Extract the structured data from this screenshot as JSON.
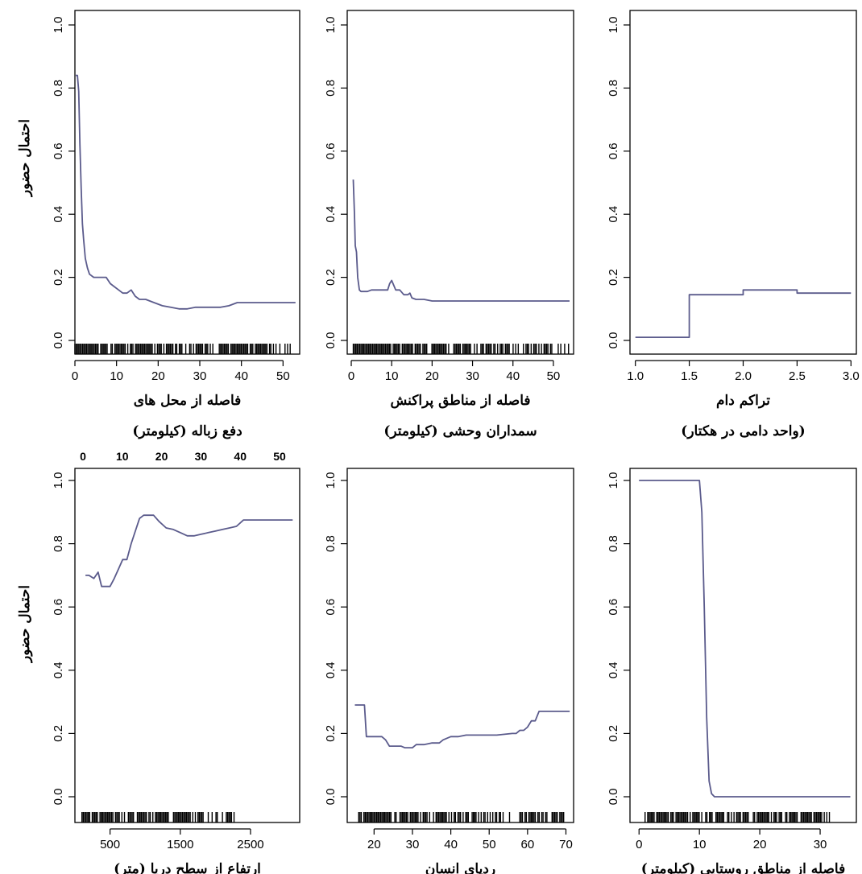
{
  "figure": {
    "y_axis_label": "احتمال حضور",
    "line_color": "#5b5b8c"
  },
  "chart_data": [
    {
      "type": "line",
      "panel": "top-left",
      "xlabel": [
        "فاصله از محل های",
        "دفع زباله (کیلومتر)"
      ],
      "xlim": [
        0,
        54
      ],
      "x_ticks": [
        "0",
        "10",
        "20",
        "30",
        "40",
        "50"
      ],
      "x_tick_values": [
        0,
        10,
        20,
        30,
        40,
        50
      ],
      "ylim": [
        0,
        1
      ],
      "y_ticks": [
        "0.0",
        "0.2",
        "0.4",
        "0.6",
        "0.8",
        "1.0"
      ],
      "y_label_shown": true,
      "series": [
        {
          "x": [
            0.2,
            0.6,
            0.9,
            1.2,
            1.5,
            1.8,
            2.1,
            2.5,
            3.0,
            3.5,
            4.5,
            5.5,
            6.5,
            7.5,
            8.5,
            9.5,
            10.5,
            11.5,
            12.5,
            13.5,
            14.5,
            15.5,
            17,
            19,
            21,
            23,
            25,
            27,
            29,
            31,
            35,
            37,
            39,
            45,
            50,
            53
          ],
          "y": [
            0.84,
            0.84,
            0.79,
            0.62,
            0.48,
            0.37,
            0.32,
            0.26,
            0.23,
            0.21,
            0.2,
            0.2,
            0.2,
            0.2,
            0.18,
            0.17,
            0.16,
            0.15,
            0.15,
            0.16,
            0.14,
            0.13,
            0.13,
            0.12,
            0.11,
            0.105,
            0.1,
            0.1,
            0.105,
            0.105,
            0.105,
            0.11,
            0.12,
            0.12,
            0.12,
            0.12
          ]
        }
      ],
      "rug": {
        "from": 0,
        "to": 52
      }
    },
    {
      "type": "line",
      "panel": "top-middle",
      "xlabel": [
        "فاصله از مناطق پراکنش",
        "سمداران وحشی (کیلومتر)"
      ],
      "xlim": [
        -1,
        55
      ],
      "x_ticks": [
        "0",
        "10",
        "20",
        "30",
        "40",
        "50"
      ],
      "x_tick_values": [
        0,
        10,
        20,
        30,
        40,
        50
      ],
      "ylim": [
        0,
        1
      ],
      "y_ticks": [
        "0.0",
        "0.2",
        "0.4",
        "0.6",
        "0.8",
        "1.0"
      ],
      "y_label_shown": false,
      "series": [
        {
          "x": [
            0.5,
            0.8,
            1.0,
            1.3,
            1.6,
            2.0,
            2.4,
            3.0,
            4.0,
            5.0,
            6.0,
            7.0,
            8.0,
            9.0,
            9.5,
            10.0,
            10.5,
            11.0,
            12.0,
            13.0,
            14.0,
            14.5,
            15.0,
            16,
            18,
            20,
            30,
            40,
            50,
            54
          ],
          "y": [
            0.51,
            0.4,
            0.3,
            0.28,
            0.2,
            0.16,
            0.155,
            0.155,
            0.155,
            0.16,
            0.16,
            0.16,
            0.16,
            0.16,
            0.18,
            0.19,
            0.175,
            0.16,
            0.16,
            0.145,
            0.145,
            0.15,
            0.135,
            0.13,
            0.13,
            0.125,
            0.125,
            0.125,
            0.125,
            0.125
          ]
        }
      ],
      "rug": {
        "from": 0.5,
        "to": 54
      }
    },
    {
      "type": "line",
      "panel": "top-right",
      "xlabel": [
        "تراکم دام",
        "(واحد دامی در هکتار)"
      ],
      "xlim": [
        0.95,
        3.05
      ],
      "x_ticks": [
        "1.0",
        "1.5",
        "2.0",
        "2.5",
        "3.0"
      ],
      "x_tick_values": [
        1.0,
        1.5,
        2.0,
        2.5,
        3.0
      ],
      "ylim": [
        0,
        1
      ],
      "y_ticks": [
        "0.0",
        "0.2",
        "0.4",
        "0.6",
        "0.8",
        "1.0"
      ],
      "y_label_shown": false,
      "series": [
        {
          "x": [
            1.0,
            1.5,
            1.5,
            2.0,
            2.0,
            2.5,
            2.5,
            3.0
          ],
          "y": [
            0.01,
            0.01,
            0.145,
            0.145,
            0.16,
            0.16,
            0.15,
            0.15
          ]
        }
      ],
      "rug": null
    },
    {
      "type": "line",
      "panel": "bottom-left",
      "xlabel": [
        "ارتفاع از سطح دریا (متر)"
      ],
      "xlim": [
        0,
        3200
      ],
      "x_ticks": [
        "500",
        "1500",
        "2500"
      ],
      "x_tick_values": [
        500,
        1500,
        2500
      ],
      "top_axis_ticks": [
        "0",
        "10",
        "20",
        "30",
        "40",
        "50"
      ],
      "ylim": [
        0,
        1
      ],
      "y_ticks": [
        "0.0",
        "0.2",
        "0.4",
        "0.6",
        "0.8",
        "1.0"
      ],
      "y_label_shown": true,
      "series": [
        {
          "x": [
            150,
            200,
            270,
            330,
            380,
            440,
            500,
            560,
            620,
            680,
            740,
            800,
            860,
            920,
            980,
            1050,
            1120,
            1200,
            1300,
            1400,
            1500,
            1600,
            1700,
            1800,
            1900,
            2000,
            2100,
            2200,
            2300,
            2400,
            2500,
            2700,
            2900,
            3100
          ],
          "y": [
            0.7,
            0.7,
            0.69,
            0.71,
            0.665,
            0.665,
            0.665,
            0.69,
            0.72,
            0.75,
            0.75,
            0.8,
            0.84,
            0.88,
            0.89,
            0.89,
            0.89,
            0.87,
            0.85,
            0.845,
            0.835,
            0.825,
            0.825,
            0.83,
            0.835,
            0.84,
            0.845,
            0.85,
            0.855,
            0.875,
            0.875,
            0.875,
            0.875,
            0.875
          ]
        }
      ],
      "rug": {
        "from": 100,
        "to": 2300
      }
    },
    {
      "type": "line",
      "panel": "bottom-middle",
      "xlabel": [
        "ردپای انسان"
      ],
      "xlim": [
        13,
        72
      ],
      "x_ticks": [
        "20",
        "30",
        "40",
        "50",
        "60",
        "70"
      ],
      "x_tick_values": [
        20,
        30,
        40,
        50,
        60,
        70
      ],
      "ylim": [
        0,
        1
      ],
      "y_ticks": [
        "0.0",
        "0.2",
        "0.4",
        "0.6",
        "0.8",
        "1.0"
      ],
      "y_label_shown": false,
      "series": [
        {
          "x": [
            15,
            17.5,
            18,
            22,
            23,
            24,
            27,
            28,
            30,
            31,
            33,
            35,
            37,
            38,
            40,
            42,
            44,
            48,
            52,
            56,
            57,
            58,
            59,
            60,
            61,
            62,
            63,
            66,
            69,
            71
          ],
          "y": [
            0.29,
            0.29,
            0.19,
            0.19,
            0.18,
            0.16,
            0.16,
            0.155,
            0.155,
            0.165,
            0.165,
            0.17,
            0.17,
            0.18,
            0.19,
            0.19,
            0.195,
            0.195,
            0.195,
            0.2,
            0.2,
            0.21,
            0.21,
            0.22,
            0.24,
            0.24,
            0.27,
            0.27,
            0.27,
            0.27
          ]
        }
      ],
      "rug": {
        "from": 16,
        "to": 70
      }
    },
    {
      "type": "line",
      "panel": "bottom-right",
      "xlabel": [
        "فاصله از مناطق روستایی (کیلومتر)"
      ],
      "xlim": [
        -1.5,
        36
      ],
      "x_ticks": [
        "0",
        "10",
        "20",
        "30"
      ],
      "x_tick_values": [
        0,
        10,
        20,
        30
      ],
      "ylim": [
        0,
        1
      ],
      "y_ticks": [
        "0.0",
        "0.2",
        "0.4",
        "0.6",
        "0.8",
        "1.0"
      ],
      "y_label_shown": false,
      "series": [
        {
          "x": [
            0,
            10.0,
            10.4,
            10.8,
            11.2,
            11.6,
            12.0,
            12.5,
            14,
            20,
            30,
            35
          ],
          "y": [
            1.0,
            1.0,
            0.9,
            0.6,
            0.25,
            0.05,
            0.01,
            0.0,
            0.0,
            0.0,
            0.0,
            0.0
          ]
        }
      ],
      "rug": {
        "from": 1,
        "to": 32
      }
    }
  ]
}
